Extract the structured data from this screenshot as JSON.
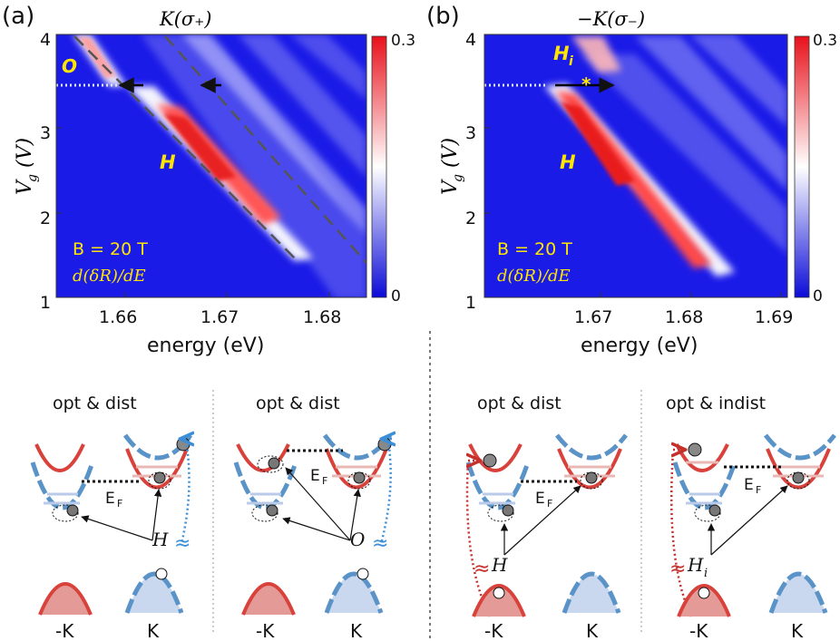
{
  "panels": [
    {
      "label": "(a)",
      "title": "K(σ₊)",
      "xlabel": "energy (eV)",
      "ylabel": "V",
      "ylabel_sub": "g",
      "ylabel_unit": "(V)",
      "xticks": [
        "1.66",
        "1.67",
        "1.68"
      ],
      "yticks": [
        "1",
        "2",
        "3",
        "4"
      ],
      "colorbar": {
        "max": "0.3",
        "min": "0"
      },
      "field": "B = 20 T",
      "quantity": "d(δR)/dE",
      "state_labels": [
        "O",
        "H"
      ]
    },
    {
      "label": "(b)",
      "title": "−K(σ₋)",
      "xlabel": "energy (eV)",
      "ylabel": "V",
      "ylabel_sub": "g",
      "ylabel_unit": "(V)",
      "xticks": [
        "1.67",
        "1.68",
        "1.69"
      ],
      "yticks": [
        "1",
        "2",
        "3",
        "4"
      ],
      "colorbar": {
        "max": "0.3",
        "min": "0"
      },
      "field": "B = 20 T",
      "quantity": "d(δR)/dE",
      "state_labels": [
        "H",
        "H",
        "i"
      ],
      "marker": "*"
    }
  ],
  "schematics": [
    {
      "caption": "opt & dist",
      "exciton": "H",
      "valley_left": "-K",
      "valley_right": "K",
      "fermi": "E",
      "fermi_sub": "F"
    },
    {
      "caption": "opt & dist",
      "exciton": "O",
      "valley_left": "-K",
      "valley_right": "K",
      "fermi": "E",
      "fermi_sub": "F"
    },
    {
      "caption": "opt & dist",
      "exciton": "H",
      "valley_left": "-K",
      "valley_right": "K",
      "fermi": "E",
      "fermi_sub": "F"
    },
    {
      "caption": "opt & indist",
      "exciton": "H",
      "exciton_sub": "i",
      "valley_left": "-K",
      "valley_right": "K",
      "fermi": "E",
      "fermi_sub": "F"
    }
  ],
  "colors": {
    "map_bg": "#1e1ee6",
    "red": "#d9413b",
    "blue": "#5a93c8",
    "hole_fill": "#c9d8ee",
    "red_fill": "#e49a96",
    "label_yellow": "#ffe600"
  }
}
